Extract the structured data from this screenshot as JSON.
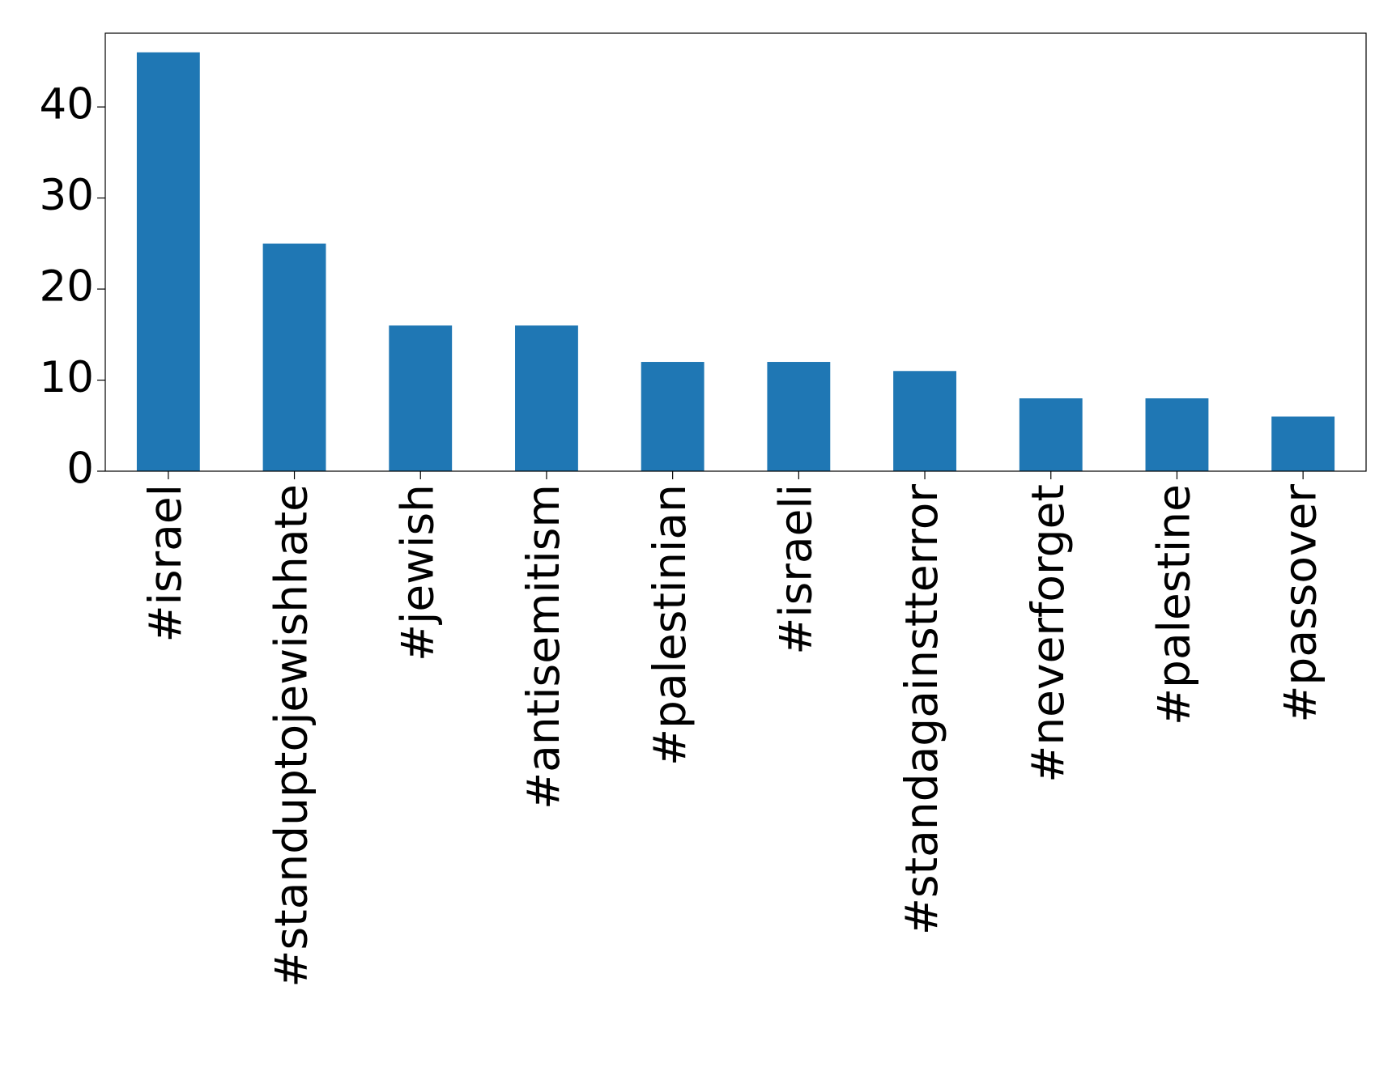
{
  "chart_data": {
    "type": "bar",
    "categories": [
      "#israel",
      "#standuptojewishhate",
      "#jewish",
      "#antisemitism",
      "#palestinian",
      "#israeli",
      "#standagainstterror",
      "#neverforget",
      "#palestine",
      "#passover"
    ],
    "values": [
      46,
      25,
      16,
      16,
      12,
      12,
      11,
      8,
      8,
      6
    ],
    "color": "#1f77b4",
    "ylim": [
      0,
      48.1
    ],
    "yticks": [
      0,
      10,
      20,
      30,
      40
    ],
    "grid": false
  }
}
